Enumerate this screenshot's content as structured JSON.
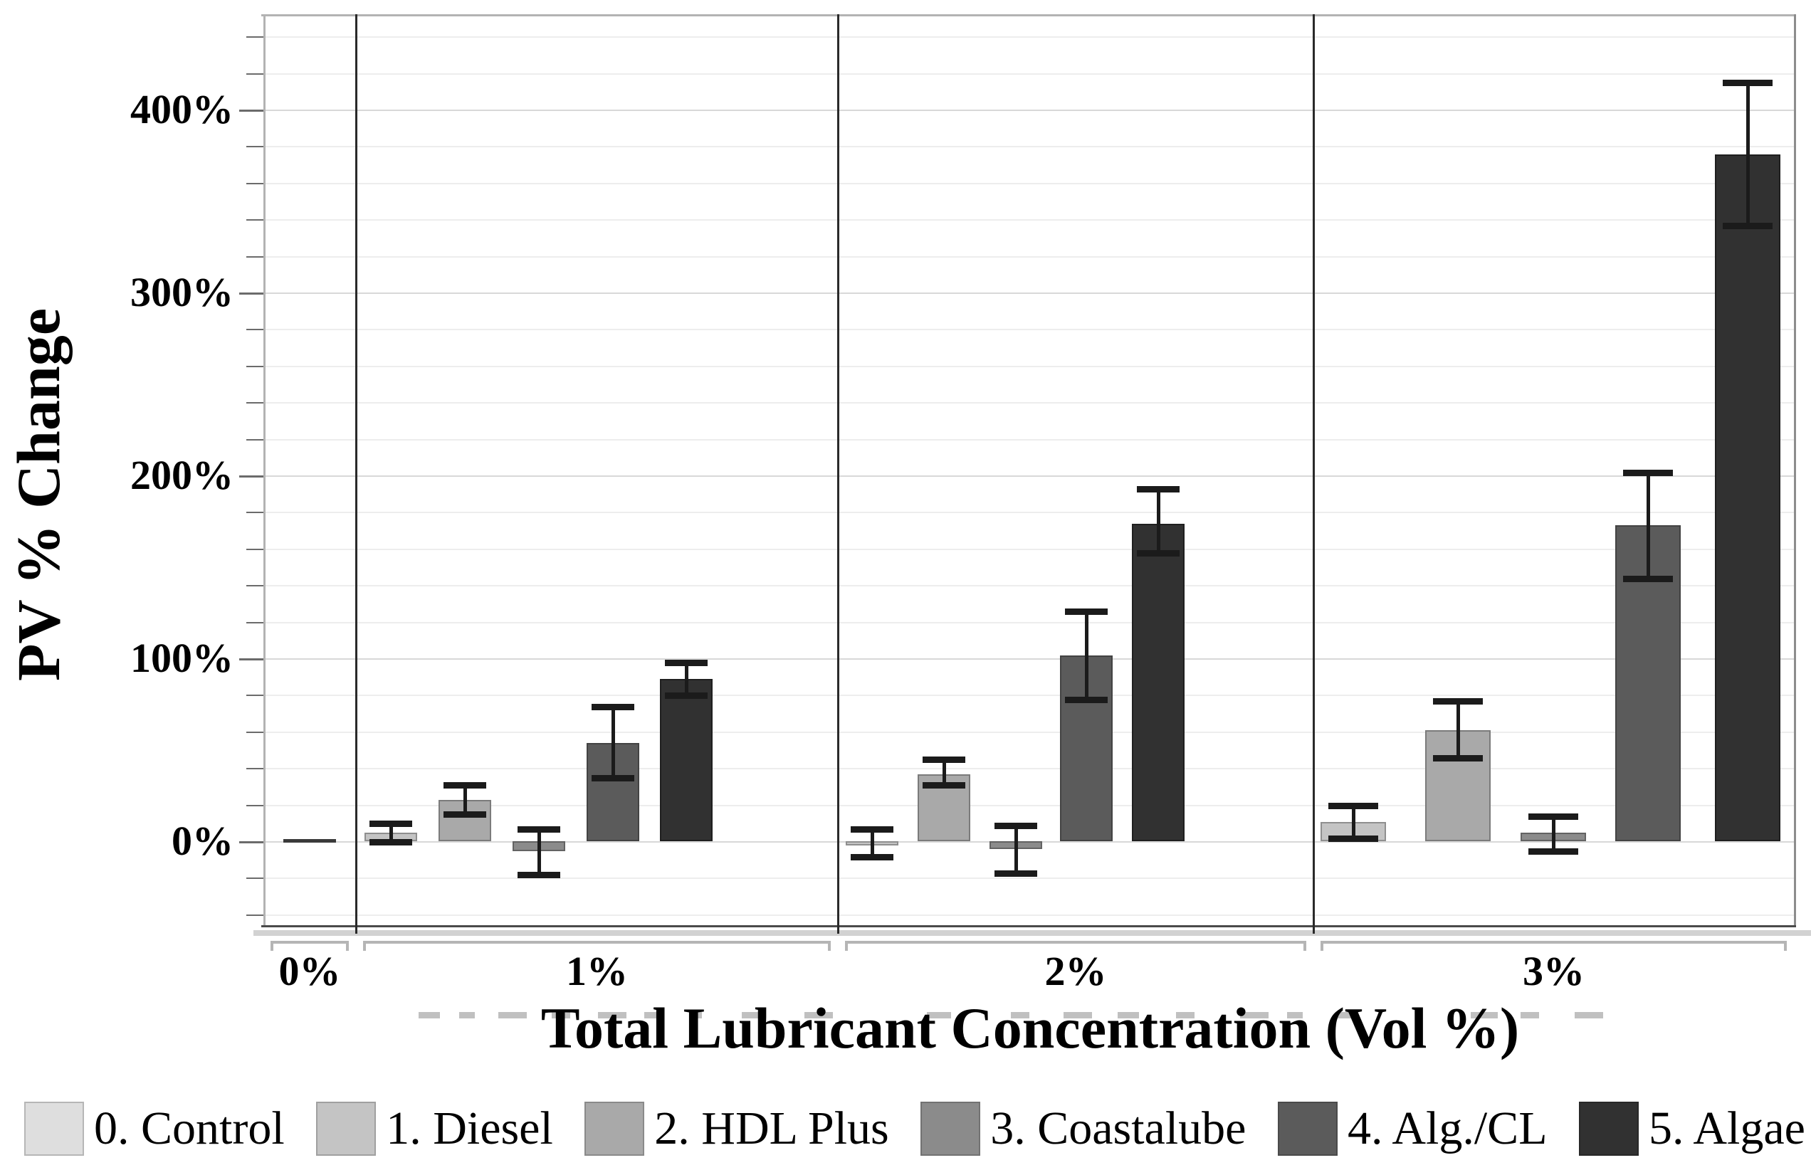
{
  "chart_data": {
    "type": "bar",
    "title": "",
    "xlabel": "Total Lubricant Concentration (Vol %)",
    "ylabel": "PV % Change",
    "ylim": [
      -45,
      452
    ],
    "grid": {
      "minor_step_pct": 20,
      "major_step_pct": 100,
      "grid_on": true
    },
    "legend_position": "bottom",
    "y_axis": {
      "major_ticks": [
        {
          "value": 400,
          "label": "400%"
        },
        {
          "value": 300,
          "label": "300%"
        },
        {
          "value": 200,
          "label": "200%"
        },
        {
          "value": 100,
          "label": "100%"
        },
        {
          "value": 0,
          "label": "0%"
        }
      ]
    },
    "x_groups": [
      {
        "label": "0%"
      },
      {
        "label": "1%"
      },
      {
        "label": "2%"
      },
      {
        "label": "3%"
      }
    ],
    "series": [
      {
        "name": "0. Control",
        "fill": "#dedede",
        "border": "#a0a0a0"
      },
      {
        "name": "1. Diesel",
        "fill": "#c4c4c4",
        "border": "#8f8f8f"
      },
      {
        "name": "2. HDL Plus",
        "fill": "#a9a9a9",
        "border": "#7b7b7b"
      },
      {
        "name": "3. Coastalube",
        "fill": "#8b8b8b",
        "border": "#636363"
      },
      {
        "name": "4. Alg./CL",
        "fill": "#5b5b5b",
        "border": "#434343"
      },
      {
        "name": "5. Algae",
        "fill": "#313131",
        "border": "#1f1f1f"
      }
    ],
    "bars": [
      {
        "group": "0%",
        "series": "0. Control",
        "value": 0,
        "err_plus": null,
        "err_minus": null
      },
      {
        "group": "1%",
        "series": "1. Diesel",
        "value": 5,
        "err_plus": 5,
        "err_minus": 5
      },
      {
        "group": "1%",
        "series": "2. HDL Plus",
        "value": 23,
        "err_plus": 8,
        "err_minus": 8
      },
      {
        "group": "1%",
        "series": "3. Coastalube",
        "value": -5,
        "err_plus": 12,
        "err_minus": 13
      },
      {
        "group": "1%",
        "series": "4. Alg./CL",
        "value": 54,
        "err_plus": 20,
        "err_minus": 19
      },
      {
        "group": "1%",
        "series": "5. Algae",
        "value": 89,
        "err_plus": 9,
        "err_minus": 9
      },
      {
        "group": "2%",
        "series": "1. Diesel",
        "value": -2,
        "err_plus": 9,
        "err_minus": 6
      },
      {
        "group": "2%",
        "series": "2. HDL Plus",
        "value": 37,
        "err_plus": 8,
        "err_minus": 6
      },
      {
        "group": "2%",
        "series": "3. Coastalube",
        "value": -4,
        "err_plus": 13,
        "err_minus": 13
      },
      {
        "group": "2%",
        "series": "4. Alg./CL",
        "value": 102,
        "err_plus": 24,
        "err_minus": 24
      },
      {
        "group": "2%",
        "series": "5. Algae",
        "value": 174,
        "err_plus": 19,
        "err_minus": 16
      },
      {
        "group": "3%",
        "series": "1. Diesel",
        "value": 11,
        "err_plus": 9,
        "err_minus": 9
      },
      {
        "group": "3%",
        "series": "2. HDL Plus",
        "value": 61,
        "err_plus": 16,
        "err_minus": 15
      },
      {
        "group": "3%",
        "series": "3. Coastalube",
        "value": 5,
        "err_plus": 9,
        "err_minus": 10
      },
      {
        "group": "3%",
        "series": "4. Alg./CL",
        "value": 173,
        "err_plus": 29,
        "err_minus": 29
      },
      {
        "group": "3%",
        "series": "5. Algae",
        "value": 376,
        "err_plus": 39,
        "err_minus": 39
      }
    ]
  },
  "legend": {
    "entries": [
      {
        "label": "0. Control",
        "color": "#dedede"
      },
      {
        "label": "1. Diesel",
        "color": "#c4c4c4"
      },
      {
        "label": "2. HDL Plus",
        "color": "#a9a9a9"
      },
      {
        "label": "3. Coastalube",
        "color": "#8b8b8b"
      },
      {
        "label": "4. Alg./CL",
        "color": "#5b5b5b"
      },
      {
        "label": "5. Algae",
        "color": "#313131"
      }
    ]
  }
}
